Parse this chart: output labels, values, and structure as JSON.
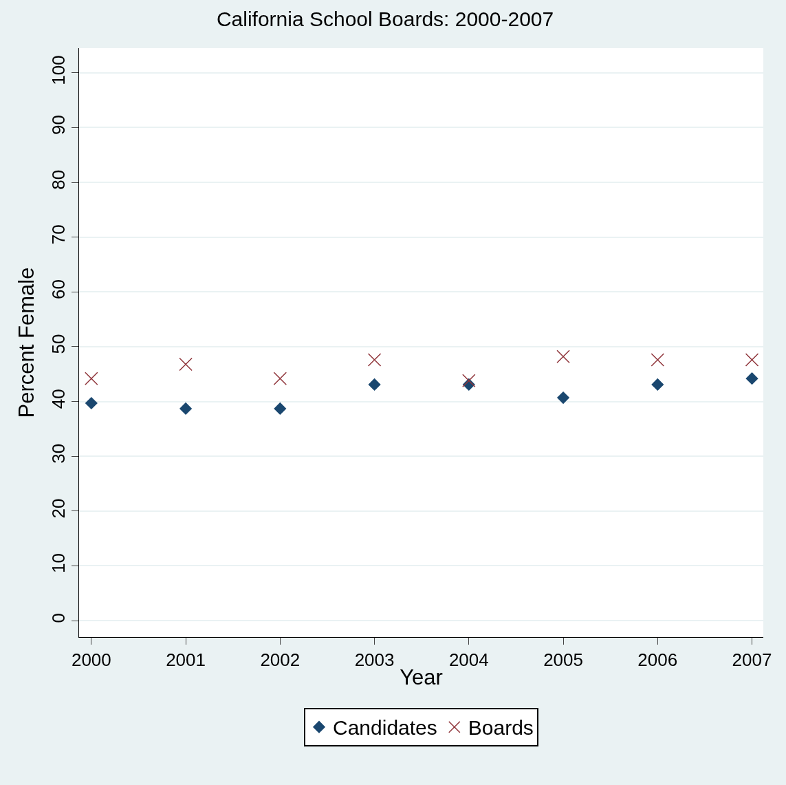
{
  "chart_data": {
    "type": "scatter",
    "title": "California School Boards: 2000-2007",
    "xlabel": "Year",
    "ylabel": "Percent Female",
    "x": [
      2000,
      2001,
      2002,
      2003,
      2004,
      2005,
      2006,
      2007
    ],
    "series": [
      {
        "name": "Candidates",
        "color": "#1a476f",
        "marker": "diamond",
        "values": [
          39.7,
          38.7,
          38.7,
          43.1,
          43.1,
          40.7,
          43.1,
          44.2
        ]
      },
      {
        "name": "Boards",
        "color": "#90353b",
        "marker": "cross",
        "values": [
          44.2,
          46.8,
          44.2,
          47.6,
          43.8,
          48.2,
          47.6,
          47.6
        ]
      }
    ],
    "xlim": [
      1999.87,
      2007.12
    ],
    "ylim": [
      -3,
      104.5
    ],
    "xticks": [
      2000,
      2001,
      2002,
      2003,
      2004,
      2005,
      2006,
      2007
    ],
    "yticks": [
      0,
      10,
      20,
      30,
      40,
      50,
      60,
      70,
      80,
      90,
      100
    ],
    "grid": "y",
    "legend": "bottom"
  }
}
